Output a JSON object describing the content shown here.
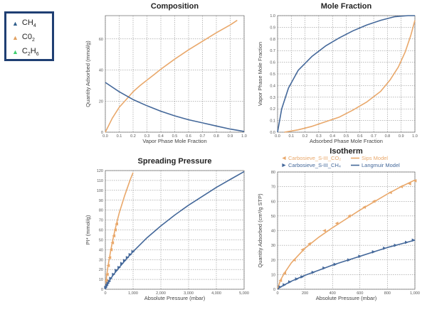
{
  "legend": {
    "items": [
      {
        "name": "CH",
        "sub": "4",
        "marker": "triangle",
        "color": "#2f5d8c"
      },
      {
        "name": "C0",
        "sub": "2",
        "marker": "triangle",
        "color": "#e0a060"
      },
      {
        "name": "C",
        "sub": "2",
        "name2": "H",
        "sub2": "6",
        "marker": "triangle",
        "color": "#3ecf6e"
      }
    ]
  },
  "colors": {
    "co2": "#e9a86b",
    "ch4": "#44689a",
    "legend_border": "#1f3f73"
  },
  "chart_data": [
    {
      "type": "line",
      "title": "Composition",
      "xlabel": "Vapor Phase Mole Fraction",
      "ylabel": "Quantity Adsorbed (mmol/g)",
      "xlim": [
        0,
        1
      ],
      "ylim": [
        0,
        75
      ],
      "xticks": [
        "0.0",
        "0.1",
        "0.2",
        "0.3",
        "0.4",
        "0.5",
        "0.6",
        "0.7",
        "0.8",
        "0.9",
        "1.0"
      ],
      "yticks": [
        {
          "v": 0,
          "t": "0"
        },
        {
          "v": 20,
          "t": "20"
        },
        {
          "v": 40,
          "t": "40"
        },
        {
          "v": 60,
          "t": "60"
        }
      ],
      "grid": true,
      "series": [
        {
          "key": "co2",
          "x": [
            0,
            0.05,
            0.1,
            0.15,
            0.2,
            0.25,
            0.3,
            0.35,
            0.4,
            0.5,
            0.6,
            0.7,
            0.8,
            0.9,
            0.95
          ],
          "y": [
            0,
            9,
            16,
            21,
            26,
            30,
            33.5,
            37,
            40.5,
            47,
            53,
            58.5,
            64,
            69,
            72
          ]
        },
        {
          "key": "ch4",
          "x": [
            0,
            0.1,
            0.2,
            0.3,
            0.4,
            0.5,
            0.6,
            0.7,
            0.8,
            0.9,
            1.0
          ],
          "y": [
            32,
            26,
            21,
            17,
            13.5,
            10.5,
            8,
            6,
            4,
            2,
            0.5
          ]
        }
      ]
    },
    {
      "type": "line",
      "title": "Mole Fraction",
      "xlabel": "Adsorbed Phase Mole Fraction",
      "ylabel": "Vapor Phase Mole Fraction",
      "xlim": [
        0,
        1
      ],
      "ylim": [
        0,
        1
      ],
      "xticks": [
        "0.0",
        "0.1",
        "0.2",
        "0.3",
        "0.4",
        "0.5",
        "0.6",
        "0.7",
        "0.8",
        "0.9",
        "1.0"
      ],
      "yticks": [
        {
          "v": 0,
          "t": "0.0"
        },
        {
          "v": 0.1,
          "t": "0.1"
        },
        {
          "v": 0.2,
          "t": "0.2"
        },
        {
          "v": 0.3,
          "t": "0.3"
        },
        {
          "v": 0.4,
          "t": "0.4"
        },
        {
          "v": 0.5,
          "t": "0.5"
        },
        {
          "v": 0.6,
          "t": "0.6"
        },
        {
          "v": 0.7,
          "t": "0.7"
        },
        {
          "v": 0.8,
          "t": "0.8"
        },
        {
          "v": 0.9,
          "t": "0.9"
        },
        {
          "v": 1.0,
          "t": "1.0"
        }
      ],
      "grid": true,
      "series": [
        {
          "key": "ch4",
          "x": [
            0,
            0.03,
            0.08,
            0.15,
            0.25,
            0.35,
            0.45,
            0.55,
            0.65,
            0.75,
            0.85,
            0.95,
            1.0
          ],
          "y": [
            0,
            0.2,
            0.38,
            0.53,
            0.65,
            0.74,
            0.81,
            0.87,
            0.92,
            0.96,
            0.99,
            1.0,
            1.0
          ]
        },
        {
          "key": "co2",
          "x": [
            0.05,
            0.15,
            0.25,
            0.35,
            0.45,
            0.55,
            0.65,
            0.75,
            0.82,
            0.88,
            0.93,
            0.97,
            1.0
          ],
          "y": [
            0,
            0.02,
            0.05,
            0.09,
            0.13,
            0.19,
            0.26,
            0.35,
            0.45,
            0.56,
            0.69,
            0.83,
            0.96
          ]
        }
      ]
    },
    {
      "type": "line",
      "title": "Spreading Pressure",
      "xlabel": "Absolute Pressure (mbar)",
      "ylabel": "PI* (mmol/g)",
      "xlim": [
        0,
        5000
      ],
      "ylim": [
        0,
        120
      ],
      "xticks": [
        {
          "v": 0,
          "t": "0"
        },
        {
          "v": 1000,
          "t": "1,000"
        },
        {
          "v": 2000,
          "t": "2,000"
        },
        {
          "v": 3000,
          "t": "3,000"
        },
        {
          "v": 4000,
          "t": "4,000"
        },
        {
          "v": 5000,
          "t": "5,000"
        }
      ],
      "yticks": [
        {
          "v": 0,
          "t": "0"
        },
        {
          "v": 10,
          "t": "10"
        },
        {
          "v": 20,
          "t": "20"
        },
        {
          "v": 30,
          "t": "30"
        },
        {
          "v": 40,
          "t": "40"
        },
        {
          "v": 50,
          "t": "50"
        },
        {
          "v": 60,
          "t": "60"
        },
        {
          "v": 70,
          "t": "70"
        },
        {
          "v": 80,
          "t": "80"
        },
        {
          "v": 90,
          "t": "90"
        },
        {
          "v": 100,
          "t": "100"
        },
        {
          "v": 110,
          "t": "110"
        },
        {
          "v": 120,
          "t": "120"
        }
      ],
      "grid": true,
      "series": [
        {
          "key": "co2",
          "x": [
            0,
            50,
            100,
            200,
            300,
            400,
            500,
            600,
            700,
            800,
            900,
            1000
          ],
          "y": [
            0,
            14,
            24,
            40,
            54,
            66,
            77,
            86,
            95,
            103,
            111,
            118
          ]
        },
        {
          "key": "co2_pts",
          "marker": "triangle-left",
          "x": [
            30,
            60,
            100,
            150,
            200,
            250,
            300,
            350,
            400
          ],
          "y": [
            9,
            15,
            24,
            32,
            40,
            47,
            54,
            60,
            66
          ]
        },
        {
          "key": "ch4",
          "x": [
            0,
            100,
            200,
            300,
            500,
            800,
            1000,
            1500,
            2000,
            2500,
            3000,
            3500,
            4000,
            4500,
            5000
          ],
          "y": [
            0,
            6,
            11,
            15,
            22,
            32,
            38,
            52,
            64,
            75,
            85,
            94,
            103,
            111,
            119
          ]
        },
        {
          "key": "ch4_pts",
          "marker": "triangle-right",
          "x": [
            20,
            60,
            100,
            150,
            200,
            300,
            400,
            500,
            600,
            700,
            800,
            900,
            1000
          ],
          "y": [
            2,
            4,
            6,
            8,
            11,
            15,
            19,
            22,
            26,
            29,
            32,
            35,
            38
          ]
        }
      ]
    },
    {
      "type": "line",
      "title": "Isotherm",
      "xlabel": "Absolute Pressure (mbar)",
      "ylabel": "Quantity Adsorbed (cm³/g STP)",
      "xlim": [
        0,
        1000
      ],
      "ylim": [
        0,
        80
      ],
      "xticks": [
        {
          "v": 0,
          "t": "0"
        },
        {
          "v": 200,
          "t": "200"
        },
        {
          "v": 400,
          "t": "400"
        },
        {
          "v": 600,
          "t": "600"
        },
        {
          "v": 800,
          "t": "800"
        },
        {
          "v": 1000,
          "t": "1,000"
        }
      ],
      "yticks": [
        {
          "v": 0,
          "t": "0"
        },
        {
          "v": 10,
          "t": "10"
        },
        {
          "v": 20,
          "t": "20"
        },
        {
          "v": 30,
          "t": "30"
        },
        {
          "v": 40,
          "t": "40"
        },
        {
          "v": 50,
          "t": "50"
        },
        {
          "v": 60,
          "t": "60"
        },
        {
          "v": 70,
          "t": "70"
        },
        {
          "v": 80,
          "t": "80"
        }
      ],
      "grid": true,
      "legend_entries": [
        {
          "text": "Carbosieve_S-III_CO₂",
          "key": "co2",
          "marker": "triangle-left"
        },
        {
          "text": "Sips Model",
          "key": "co2",
          "marker": "line"
        },
        {
          "text": "Carbosieve_S-III_CH₄",
          "key": "ch4",
          "marker": "triangle-right"
        },
        {
          "text": "Langmuir Model",
          "key": "ch4",
          "marker": "line"
        }
      ],
      "series": [
        {
          "key": "co2",
          "x": [
            0,
            20,
            50,
            100,
            150,
            200,
            300,
            400,
            500,
            600,
            700,
            800,
            900,
            1000
          ],
          "y": [
            0,
            6,
            11,
            18,
            23,
            28,
            35.5,
            42,
            48,
            54,
            59.5,
            65,
            70,
            74.5
          ]
        },
        {
          "key": "co2_pts",
          "marker": "triangle-left",
          "x": [
            20,
            50,
            120,
            180,
            230,
            340,
            430,
            520,
            630,
            700,
            820,
            900,
            960,
            1000
          ],
          "y": [
            6,
            11,
            20,
            27,
            31,
            40,
            45,
            50,
            56,
            60,
            66,
            70,
            72,
            74
          ]
        },
        {
          "key": "ch4",
          "x": [
            0,
            20,
            50,
            100,
            150,
            200,
            300,
            400,
            500,
            600,
            700,
            800,
            900,
            1000
          ],
          "y": [
            0,
            1.5,
            3,
            5.5,
            7.5,
            9.5,
            13,
            16.5,
            19.5,
            22.5,
            25.5,
            28.5,
            31,
            33.5
          ]
        },
        {
          "key": "ch4_pts",
          "marker": "triangle-right",
          "x": [
            20,
            50,
            90,
            140,
            180,
            260,
            340,
            420,
            520,
            600,
            700,
            780,
            860,
            940,
            990
          ],
          "y": [
            1.5,
            3,
            5,
            7,
            8.5,
            11.5,
            14.5,
            17,
            20,
            22.5,
            25.5,
            28,
            30,
            32,
            33.5
          ]
        }
      ]
    }
  ]
}
